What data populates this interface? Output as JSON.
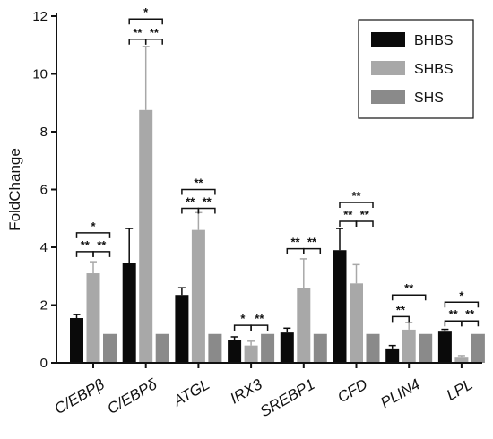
{
  "chart_data": {
    "type": "bar",
    "ylabel": "FoldChange",
    "xlabel": "",
    "title": "",
    "ylim": [
      0,
      12
    ],
    "yticks": [
      "0",
      "2",
      "4",
      "6",
      "8",
      "10",
      "12"
    ],
    "grid": false,
    "legend_position": "top-right",
    "categories": [
      "C/EBPβ",
      "C/EBPδ",
      "ATGL",
      "IRX3",
      "SREBP1",
      "CFD",
      "PLIN4",
      "LPL"
    ],
    "series": [
      {
        "name": "BHBS",
        "color": "#0a0a0a",
        "values": [
          1.55,
          3.45,
          2.35,
          0.8,
          1.05,
          3.9,
          0.5,
          1.08
        ],
        "errors": [
          0.12,
          1.2,
          0.25,
          0.1,
          0.15,
          0.75,
          0.1,
          0.08
        ]
      },
      {
        "name": "SHBS",
        "color": "#a8a8a8",
        "values": [
          3.1,
          8.75,
          4.6,
          0.6,
          2.6,
          2.75,
          1.15,
          0.18
        ],
        "errors": [
          0.4,
          2.2,
          0.6,
          0.15,
          1.0,
          0.65,
          0.25,
          0.07
        ]
      },
      {
        "name": "SHS",
        "color": "#8a8a8a",
        "values": [
          1.0,
          1.0,
          1.0,
          1.0,
          1.0,
          1.0,
          1.0,
          1.0
        ],
        "errors": [
          0,
          0,
          0,
          0,
          0,
          0,
          0,
          0
        ]
      }
    ],
    "annotations": [
      {
        "category": 0,
        "brackets": [
          {
            "from": 0,
            "to": 1,
            "y": 3.85,
            "label": "**"
          },
          {
            "from": 1,
            "to": 2,
            "y": 3.85,
            "label": "**"
          },
          {
            "from": 0,
            "to": 2,
            "y": 4.5,
            "label": "*"
          }
        ]
      },
      {
        "category": 1,
        "brackets": [
          {
            "from": 0,
            "to": 1,
            "y": 11.2,
            "label": "**"
          },
          {
            "from": 1,
            "to": 2,
            "y": 11.2,
            "label": "**"
          },
          {
            "from": 0,
            "to": 2,
            "y": 11.9,
            "label": "*"
          }
        ]
      },
      {
        "category": 2,
        "brackets": [
          {
            "from": 0,
            "to": 1,
            "y": 5.35,
            "label": "**"
          },
          {
            "from": 1,
            "to": 2,
            "y": 5.35,
            "label": "**"
          },
          {
            "from": 0,
            "to": 2,
            "y": 6.0,
            "label": "**"
          }
        ]
      },
      {
        "category": 3,
        "brackets": [
          {
            "from": 0,
            "to": 1,
            "y": 1.3,
            "label": "*"
          },
          {
            "from": 1,
            "to": 2,
            "y": 1.3,
            "label": "**"
          }
        ]
      },
      {
        "category": 4,
        "brackets": [
          {
            "from": 0,
            "to": 1,
            "y": 3.95,
            "label": "**"
          },
          {
            "from": 1,
            "to": 2,
            "y": 3.95,
            "label": "**"
          }
        ]
      },
      {
        "category": 5,
        "brackets": [
          {
            "from": 0,
            "to": 1,
            "y": 4.9,
            "label": "**"
          },
          {
            "from": 1,
            "to": 2,
            "y": 4.9,
            "label": "**"
          },
          {
            "from": 0,
            "to": 2,
            "y": 5.55,
            "label": "**"
          }
        ]
      },
      {
        "category": 6,
        "brackets": [
          {
            "from": 0,
            "to": 1,
            "y": 1.6,
            "label": "**"
          },
          {
            "from": 0,
            "to": 2,
            "y": 2.35,
            "label": "**"
          }
        ]
      },
      {
        "category": 7,
        "brackets": [
          {
            "from": 0,
            "to": 1,
            "y": 1.45,
            "label": "**"
          },
          {
            "from": 1,
            "to": 2,
            "y": 1.45,
            "label": "**"
          },
          {
            "from": 0,
            "to": 2,
            "y": 2.1,
            "label": "*"
          }
        ]
      }
    ]
  }
}
